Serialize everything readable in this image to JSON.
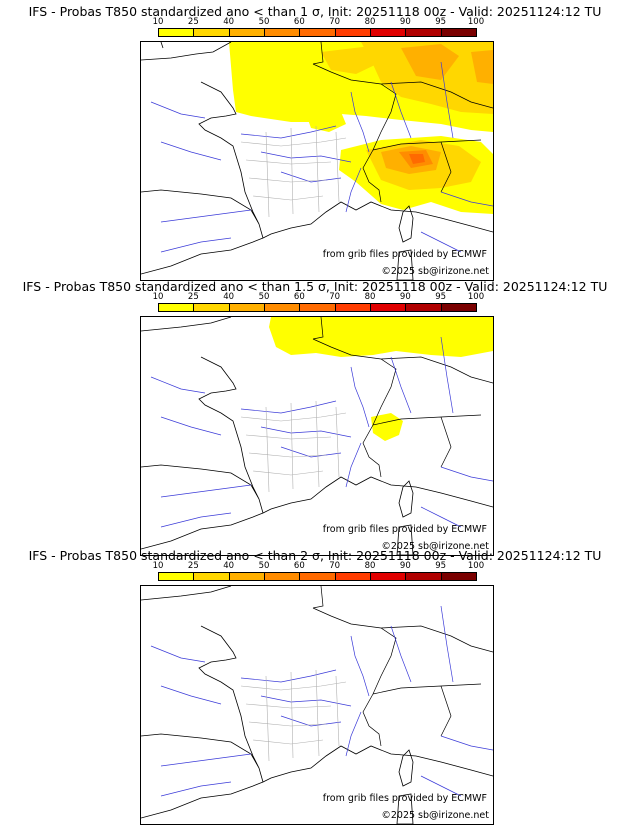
{
  "colorbar": {
    "labels": [
      "10",
      "25",
      "40",
      "50",
      "60",
      "70",
      "80",
      "90",
      "95",
      "100"
    ],
    "colors": [
      "#ffff00",
      "#ffd700",
      "#ffb000",
      "#ff8c00",
      "#ff6a00",
      "#ff3c00",
      "#e00000",
      "#b00000",
      "#7a0000"
    ]
  },
  "credits": {
    "source": "from grib files provided by ECMWF",
    "copyright": "©2025 sb@irizone.net"
  },
  "panels": [
    {
      "title": "IFS - Probas T850  standardized ano < than 1 σ, Init: 20251118 00z - Valid: 20251124:12 TU"
    },
    {
      "title": "IFS - Probas T850  standardized ano < than 1.5 σ, Init: 20251118 00z - Valid: 20251124:12 TU"
    },
    {
      "title": "IFS - Probas T850  standardized ano < than 2 σ, Init: 20251118 00z - Valid: 20251124:12 TU"
    }
  ]
}
